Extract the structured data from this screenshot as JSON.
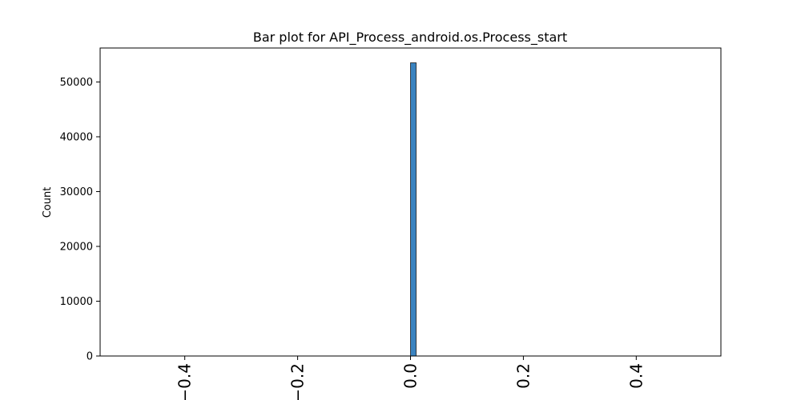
{
  "chart_data": {
    "type": "bar",
    "title": "Bar plot for API_Process_android.os.Process_start",
    "xlabel": "",
    "ylabel": "Count",
    "xlim": [
      -0.55,
      0.55
    ],
    "ylim": [
      0,
      56200
    ],
    "x_ticks": [
      {
        "value": -0.4,
        "label": "−0.4"
      },
      {
        "value": -0.2,
        "label": "−0.2"
      },
      {
        "value": 0.0,
        "label": "0.0"
      },
      {
        "value": 0.2,
        "label": "0.2"
      },
      {
        "value": 0.4,
        "label": "0.4"
      }
    ],
    "y_ticks": [
      {
        "value": 0,
        "label": "0"
      },
      {
        "value": 10000,
        "label": "10000"
      },
      {
        "value": 20000,
        "label": "20000"
      },
      {
        "value": 30000,
        "label": "30000"
      },
      {
        "value": 40000,
        "label": "40000"
      },
      {
        "value": 50000,
        "label": "50000"
      }
    ],
    "bars": [
      {
        "x_start": 0.0,
        "x_end": 0.01,
        "value": 53500
      }
    ],
    "grid": false,
    "bar_color": "#3a83c0",
    "bar_edge_color": "#1f1f1f"
  }
}
